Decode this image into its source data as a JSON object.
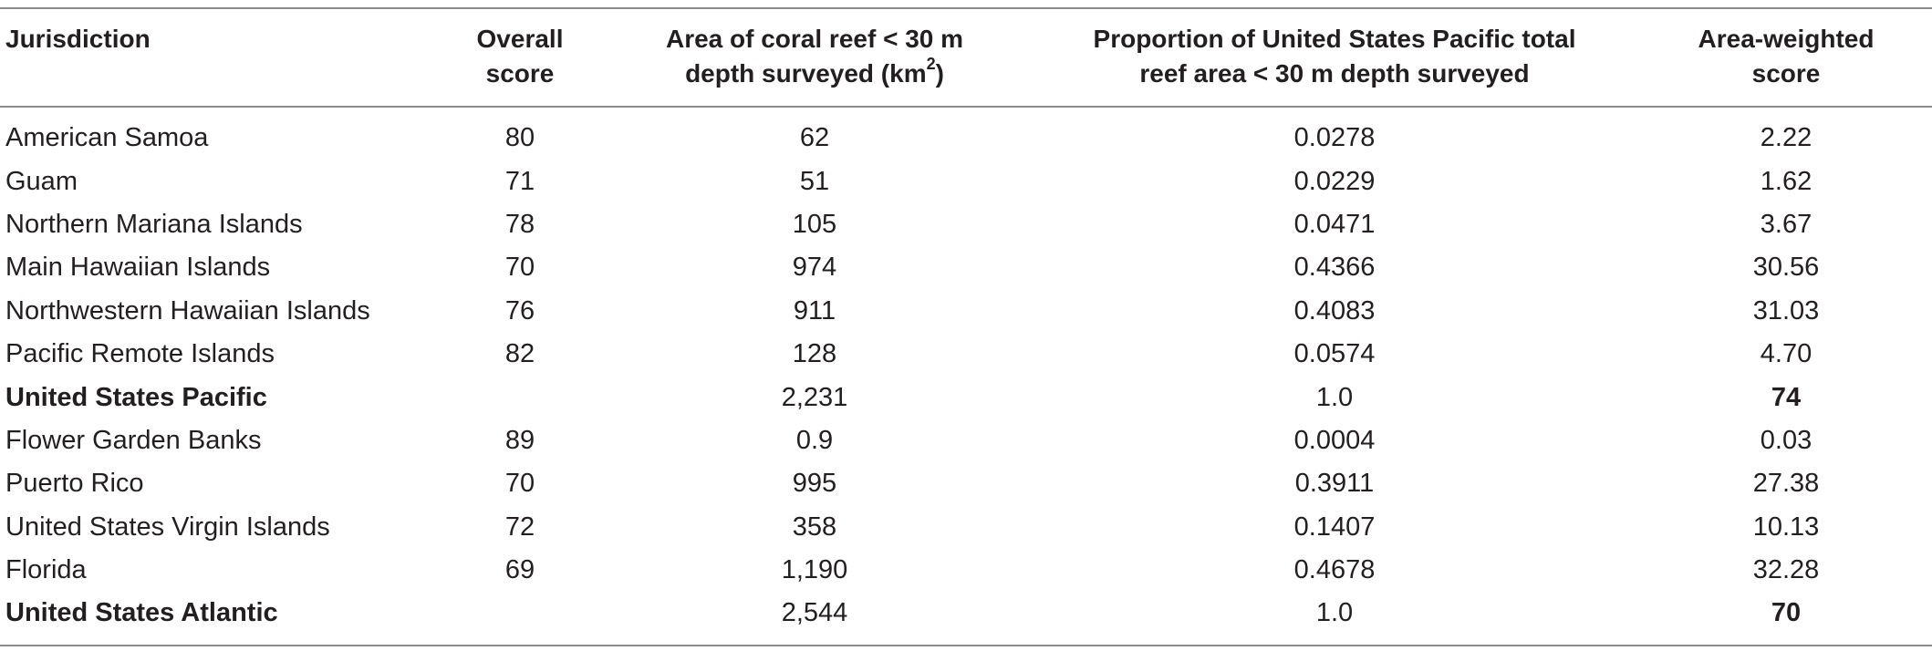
{
  "table": {
    "headers": {
      "jurisdiction": "Jurisdiction",
      "overall_line1": "Overall",
      "overall_line2": "score",
      "area_line1": "Area of coral reef < 30 m",
      "area_line2_prefix": "depth surveyed (km",
      "area_line2_sup": "2",
      "area_line2_suffix": ")",
      "prop_line1": "Proportion of United States Pacific total",
      "prop_line2": "reef area < 30 m depth surveyed",
      "aw_line1": "Area-weighted",
      "aw_line2": "score"
    },
    "rows": [
      {
        "jurisdiction": "American Samoa",
        "overall": "80",
        "area": "62",
        "proportion": "0.0278",
        "weighted": "2.22"
      },
      {
        "jurisdiction": "Guam",
        "overall": "71",
        "area": "51",
        "proportion": "0.0229",
        "weighted": "1.62"
      },
      {
        "jurisdiction": "Northern Mariana Islands",
        "overall": "78",
        "area": "105",
        "proportion": "0.0471",
        "weighted": "3.67"
      },
      {
        "jurisdiction": "Main Hawaiian Islands",
        "overall": "70",
        "area": "974",
        "proportion": "0.4366",
        "weighted": "30.56"
      },
      {
        "jurisdiction": "Northwestern Hawaiian Islands",
        "overall": "76",
        "area": "911",
        "proportion": "0.4083",
        "weighted": "31.03"
      },
      {
        "jurisdiction": "Pacific Remote Islands",
        "overall": "82",
        "area": "128",
        "proportion": "0.0574",
        "weighted": "4.70"
      },
      {
        "jurisdiction": "United States Pacific",
        "overall": "",
        "area": "2,231",
        "proportion": "1.0",
        "weighted": "74"
      },
      {
        "jurisdiction": "Flower Garden Banks",
        "overall": "89",
        "area": "0.9",
        "proportion": "0.0004",
        "weighted": "0.03"
      },
      {
        "jurisdiction": "Puerto Rico",
        "overall": "70",
        "area": "995",
        "proportion": "0.3911",
        "weighted": "27.38"
      },
      {
        "jurisdiction": "United States Virgin Islands",
        "overall": "72",
        "area": "358",
        "proportion": "0.1407",
        "weighted": "10.13"
      },
      {
        "jurisdiction": "Florida",
        "overall": "69",
        "area": "1,190",
        "proportion": "0.4678",
        "weighted": "32.28"
      },
      {
        "jurisdiction": "United States Atlantic",
        "overall": "",
        "area": "2,544",
        "proportion": "1.0",
        "weighted": "70"
      }
    ]
  }
}
